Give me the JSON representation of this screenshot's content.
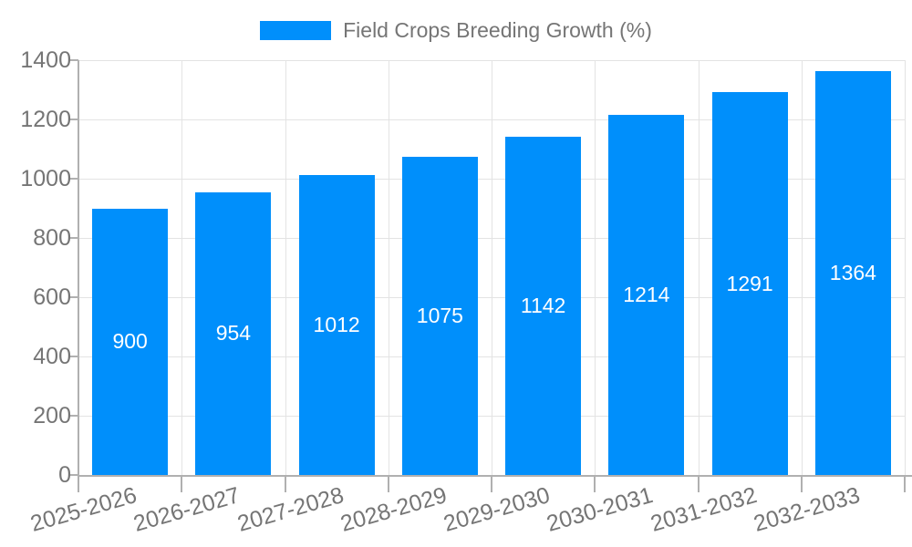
{
  "chart_data": {
    "type": "bar",
    "title": "",
    "legend": "Field Crops Breeding Growth (%)",
    "legend_position": "top-center",
    "categories": [
      "2025-2026",
      "2026-2027",
      "2027-2028",
      "2028-2029",
      "2029-2030",
      "2030-2031",
      "2031-2032",
      "2032-2033"
    ],
    "values": [
      900,
      954,
      1012,
      1075,
      1142,
      1214,
      1291,
      1364
    ],
    "xlabel": "",
    "ylabel": "",
    "ylim": [
      0,
      1400
    ],
    "ytick_step": 200,
    "grid": "both",
    "value_labels": "inside-center",
    "colors": {
      "bar": "#008FFB",
      "axis_text": "#757575",
      "value_text": "#ffffff",
      "axis_line": "#b0b0b0",
      "gridline": "#e3e3e3",
      "background": "#ffffff"
    }
  }
}
